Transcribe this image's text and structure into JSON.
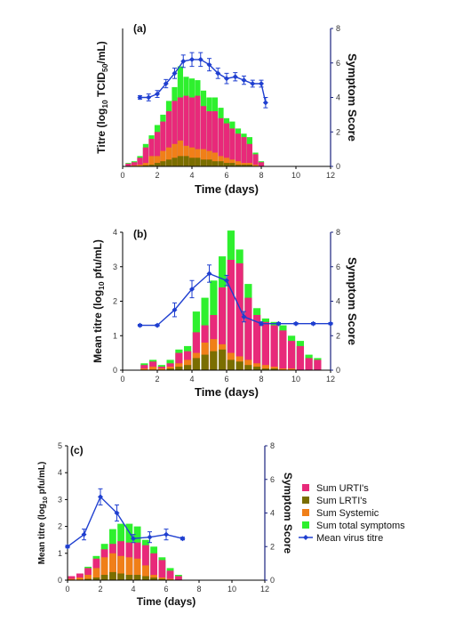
{
  "colors": {
    "urti": "#e8297a",
    "lrti": "#7a6e00",
    "systemic": "#f07f18",
    "total": "#2ef02e",
    "titre": "#1f3fd0",
    "axis": "#1a237e"
  },
  "legend": {
    "items": [
      {
        "label": "Sum URTI's",
        "key": "urti",
        "kind": "box"
      },
      {
        "label": "Sum LRTI's",
        "key": "lrti",
        "kind": "box"
      },
      {
        "label": "Sum Systemic",
        "key": "systemic",
        "kind": "box"
      },
      {
        "label": "Sum total symptoms",
        "key": "total",
        "kind": "box"
      },
      {
        "label": "Mean virus titre",
        "key": "titre",
        "kind": "line"
      }
    ]
  },
  "chart_data": [
    {
      "type": "bar",
      "panel_label": "(a)",
      "xlabel": "Time (days)",
      "ylabel": [
        "Titre (log",
        "10",
        " TCID",
        "50",
        "/mL)"
      ],
      "y2label": "Symptom Score",
      "xlim": [
        0,
        12
      ],
      "xticks": [
        0,
        2,
        4,
        6,
        8,
        10,
        12
      ],
      "ylim": [
        0,
        4
      ],
      "yticks": [],
      "y2lim": [
        0,
        8
      ],
      "y2ticks": [
        0,
        2,
        4,
        6,
        8
      ],
      "bar_x": [
        0.33,
        0.67,
        1.0,
        1.33,
        1.67,
        2.0,
        2.33,
        2.67,
        3.0,
        3.33,
        3.67,
        4.0,
        4.33,
        4.67,
        5.0,
        5.33,
        5.67,
        6.0,
        6.33,
        6.67,
        7.0,
        7.33,
        7.67,
        8.0
      ],
      "bar_width": 0.32,
      "total": [
        0.1,
        0.15,
        0.3,
        0.65,
        0.9,
        1.2,
        1.5,
        1.9,
        2.3,
        2.9,
        2.6,
        2.55,
        2.5,
        2.2,
        2.0,
        2.0,
        1.7,
        1.4,
        1.3,
        1.1,
        0.95,
        0.85,
        0.4,
        0.15
      ],
      "urti": [
        0.08,
        0.12,
        0.25,
        0.55,
        0.8,
        1.0,
        1.3,
        1.6,
        1.9,
        2.0,
        2.05,
        2.0,
        2.05,
        1.75,
        1.6,
        1.6,
        1.4,
        1.25,
        1.1,
        0.95,
        0.85,
        0.65,
        0.35,
        0.12
      ],
      "systemic": [
        0.0,
        0.03,
        0.05,
        0.1,
        0.3,
        0.3,
        0.45,
        0.55,
        0.65,
        0.75,
        0.6,
        0.55,
        0.5,
        0.5,
        0.45,
        0.4,
        0.3,
        0.25,
        0.2,
        0.15,
        0.1,
        0.1,
        0.05,
        0.0
      ],
      "lrti": [
        0.0,
        0.0,
        0.0,
        0.03,
        0.05,
        0.1,
        0.15,
        0.2,
        0.25,
        0.3,
        0.3,
        0.25,
        0.25,
        0.2,
        0.2,
        0.15,
        0.15,
        0.1,
        0.1,
        0.05,
        0.05,
        0.05,
        0.0,
        0.0
      ],
      "titre_x": [
        1,
        1.5,
        2,
        2.5,
        3,
        3.5,
        4,
        4.5,
        5,
        5.5,
        6,
        6.5,
        7,
        7.5,
        8,
        8.25
      ],
      "titre_y": [
        2.0,
        2.0,
        2.1,
        2.4,
        2.7,
        3.05,
        3.1,
        3.1,
        2.95,
        2.7,
        2.55,
        2.6,
        2.5,
        2.4,
        2.4,
        1.85
      ],
      "titre_err": [
        0.05,
        0.1,
        0.1,
        0.12,
        0.15,
        0.18,
        0.2,
        0.2,
        0.18,
        0.15,
        0.15,
        0.12,
        0.12,
        0.1,
        0.1,
        0.15
      ]
    },
    {
      "type": "bar",
      "panel_label": "(b)",
      "xlabel": "Time (days)",
      "ylabel": [
        "Mean titre (log",
        "10",
        " pfu/mL)"
      ],
      "y2label": "Symptom Score",
      "xlim": [
        0,
        12
      ],
      "xticks": [
        0,
        2,
        4,
        6,
        8,
        10,
        12
      ],
      "ylim": [
        0,
        4
      ],
      "yticks": [
        0,
        1,
        2,
        3,
        4
      ],
      "y2lim": [
        0,
        8
      ],
      "y2ticks": [
        0,
        2,
        4,
        6,
        8
      ],
      "bar_x": [
        1.25,
        1.75,
        2.25,
        2.75,
        3.25,
        3.75,
        4.25,
        4.75,
        5.25,
        5.75,
        6.25,
        6.75,
        7.25,
        7.75,
        8.25,
        8.75,
        9.25,
        9.75,
        10.25,
        10.75,
        11.25
      ],
      "bar_width": 0.42,
      "total": [
        0.2,
        0.3,
        0.15,
        0.3,
        0.6,
        0.7,
        1.7,
        2.1,
        2.6,
        3.3,
        4.05,
        3.5,
        2.5,
        1.8,
        1.5,
        1.4,
        1.3,
        1.0,
        0.85,
        0.45,
        0.35
      ],
      "urti": [
        0.15,
        0.25,
        0.1,
        0.2,
        0.5,
        0.55,
        1.1,
        1.3,
        1.6,
        2.4,
        3.2,
        3.1,
        2.1,
        1.6,
        1.4,
        1.3,
        1.15,
        0.85,
        0.7,
        0.35,
        0.3
      ],
      "systemic": [
        0.05,
        0.1,
        0.05,
        0.1,
        0.2,
        0.3,
        0.5,
        0.8,
        0.9,
        0.75,
        0.5,
        0.4,
        0.3,
        0.2,
        0.15,
        0.1,
        0.05,
        0.05,
        0.0,
        0.0,
        0.0
      ],
      "lrti": [
        0.0,
        0.0,
        0.0,
        0.05,
        0.1,
        0.15,
        0.35,
        0.45,
        0.55,
        0.6,
        0.3,
        0.25,
        0.15,
        0.1,
        0.05,
        0.05,
        0.0,
        0.0,
        0.0,
        0.0,
        0.0
      ],
      "titre_x": [
        1,
        2,
        3,
        4,
        5,
        6,
        7,
        8,
        9,
        10,
        11,
        12
      ],
      "titre_y": [
        1.3,
        1.3,
        1.75,
        2.35,
        2.8,
        2.6,
        1.55,
        1.35,
        1.35,
        1.35,
        1.35,
        1.35
      ],
      "titre_err": [
        0.03,
        0.03,
        0.2,
        0.25,
        0.25,
        0.15,
        0.15,
        0.05,
        0.03,
        0.03,
        0.03,
        0.03
      ]
    },
    {
      "type": "bar",
      "panel_label": "(c)",
      "xlabel": "Time (days)",
      "ylabel": [
        "Mean titre (log",
        "10",
        " pfu/mL)"
      ],
      "y2label": "Symptom Score",
      "xlim": [
        0,
        12
      ],
      "xticks": [
        0,
        2,
        4,
        6,
        8,
        10,
        12
      ],
      "ylim": [
        0,
        5
      ],
      "yticks": [
        0,
        1,
        2,
        3,
        4,
        5
      ],
      "y2lim": [
        0,
        8
      ],
      "y2ticks": [
        0,
        2,
        4,
        6,
        8
      ],
      "bar_x": [
        0.25,
        0.75,
        1.25,
        1.75,
        2.25,
        2.75,
        3.25,
        3.75,
        4.25,
        4.75,
        5.25,
        5.75,
        6.25,
        6.75
      ],
      "bar_width": 0.42,
      "total": [
        0.15,
        0.25,
        0.5,
        0.9,
        1.35,
        1.9,
        2.1,
        2.1,
        2.0,
        1.5,
        1.25,
        0.85,
        0.45,
        0.2
      ],
      "urti": [
        0.15,
        0.25,
        0.45,
        0.8,
        1.15,
        1.35,
        1.45,
        1.4,
        1.4,
        1.3,
        1.0,
        0.75,
        0.35,
        0.15
      ],
      "systemic": [
        0.05,
        0.1,
        0.2,
        0.45,
        0.85,
        1.0,
        0.9,
        0.85,
        0.8,
        0.55,
        0.2,
        0.1,
        0.05,
        0.0
      ],
      "lrti": [
        0.0,
        0.0,
        0.05,
        0.1,
        0.2,
        0.3,
        0.25,
        0.2,
        0.2,
        0.15,
        0.1,
        0.05,
        0.0,
        0.0
      ],
      "titre_x": [
        0,
        1,
        2,
        3,
        4,
        5,
        6,
        7
      ],
      "titre_y": [
        1.25,
        1.7,
        3.1,
        2.5,
        1.55,
        1.6,
        1.7,
        1.55
      ],
      "titre_err": [
        0.05,
        0.2,
        0.3,
        0.3,
        0.15,
        0.2,
        0.2,
        0.05
      ]
    }
  ]
}
